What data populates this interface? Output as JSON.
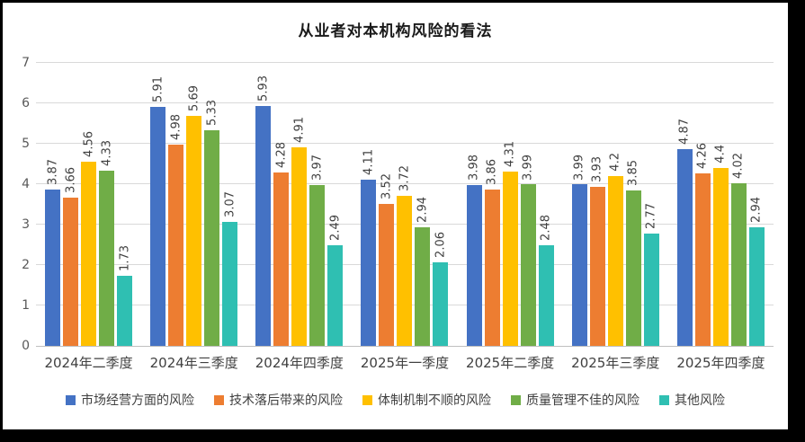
{
  "chart_data": {
    "type": "bar",
    "title": "从业者对本机构风险的看法",
    "categories": [
      "2024年二季度",
      "2024年三季度",
      "2024年四季度",
      "2025年一季度",
      "2025年二季度",
      "2025年三季度",
      "2025年四季度"
    ],
    "series": [
      {
        "name": "市场经营方面的风险",
        "color": "#4472C4",
        "values": [
          3.87,
          5.91,
          5.93,
          4.11,
          3.98,
          3.99,
          4.87
        ]
      },
      {
        "name": "技术落后带来的风险",
        "color": "#ED7D31",
        "values": [
          3.66,
          4.98,
          4.28,
          3.52,
          3.86,
          3.93,
          4.26
        ]
      },
      {
        "name": "体制机制不顺的风险",
        "color": "#FFC000",
        "values": [
          4.56,
          5.69,
          4.91,
          3.72,
          4.31,
          4.2,
          4.4
        ]
      },
      {
        "name": "质量管理不佳的风险",
        "color": "#70AD47",
        "values": [
          4.33,
          5.33,
          3.97,
          2.94,
          3.99,
          3.85,
          4.02
        ]
      },
      {
        "name": "其他风险",
        "color": "#2FBFB2",
        "values": [
          1.73,
          3.07,
          2.49,
          2.06,
          2.48,
          2.77,
          2.94
        ]
      }
    ],
    "xlabel": "",
    "ylabel": "",
    "ylim": [
      0,
      7
    ],
    "yticks": [
      0,
      1,
      2,
      3,
      4,
      5,
      6,
      7
    ],
    "grid": true,
    "legend_position": "bottom",
    "data_labels": "rotated-vertical"
  }
}
